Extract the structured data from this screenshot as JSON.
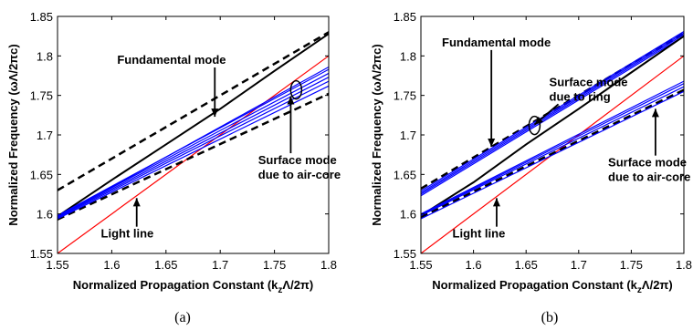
{
  "chart_data": [
    {
      "type": "line",
      "caption": "(a)",
      "xlabel": "Normalized Propagation Constant (k",
      "xlabel_sub": "z",
      "xlabel_tail": "Λ/2π)",
      "ylabel": "Normalized Frequency (ωΛ/2πc)",
      "xlim": [
        1.55,
        1.8
      ],
      "ylim": [
        1.55,
        1.85
      ],
      "xticks": [
        "1.55",
        "1.6",
        "1.65",
        "1.7",
        "1.75",
        "1.8"
      ],
      "yticks": [
        "1.55",
        "1.6",
        "1.65",
        "1.7",
        "1.75",
        "1.8",
        "1.85"
      ],
      "series": [
        {
          "style": "solid",
          "color": "#ff0000",
          "x": [
            1.55,
            1.8
          ],
          "y": [
            1.55,
            1.8
          ]
        },
        {
          "style": "dashed",
          "color": "#000000",
          "x": [
            1.55,
            1.8
          ],
          "y": [
            1.63,
            1.83
          ]
        },
        {
          "style": "solid",
          "color": "#000000",
          "x": [
            1.55,
            1.6,
            1.65,
            1.7,
            1.75,
            1.8
          ],
          "y": [
            1.597,
            1.643,
            1.688,
            1.733,
            1.781,
            1.828
          ]
        },
        {
          "style": "dashed",
          "color": "#000000",
          "x": [
            1.55,
            1.8
          ],
          "y": [
            1.593,
            1.752
          ]
        },
        {
          "style": "solid",
          "color": "#0000ff",
          "x": [
            1.55,
            1.8
          ],
          "y": [
            1.594,
            1.762
          ]
        },
        {
          "style": "solid",
          "color": "#0000ff",
          "x": [
            1.55,
            1.8
          ],
          "y": [
            1.595,
            1.768
          ]
        },
        {
          "style": "solid",
          "color": "#0000ff",
          "x": [
            1.55,
            1.8
          ],
          "y": [
            1.596,
            1.773
          ]
        },
        {
          "style": "solid",
          "color": "#0000ff",
          "x": [
            1.55,
            1.8
          ],
          "y": [
            1.597,
            1.778
          ]
        },
        {
          "style": "solid",
          "color": "#0000ff",
          "x": [
            1.55,
            1.8
          ],
          "y": [
            1.598,
            1.783
          ]
        },
        {
          "style": "solid",
          "color": "#0000ff",
          "x": [
            1.55,
            1.8
          ],
          "y": [
            1.596,
            1.786
          ]
        }
      ],
      "annotations": [
        {
          "lines": [
            "Fundamental mode"
          ],
          "x": 1.605,
          "y": 1.79,
          "arrow_to": [
            1.695,
            1.723
          ]
        },
        {
          "lines": [
            "Surface mode",
            "due to air-core"
          ],
          "x": 1.735,
          "y": 1.663,
          "arrow_to": [
            1.765,
            1.749
          ]
        },
        {
          "lines": [
            "Light line"
          ],
          "x": 1.59,
          "y": 1.57,
          "arrow_to": [
            1.623,
            1.62
          ]
        }
      ],
      "ellipse": {
        "x": 1.77,
        "y": 1.757
      }
    },
    {
      "type": "line",
      "caption": "(b)",
      "xlabel": "Normalized Propagation Constant (k",
      "xlabel_sub": "z",
      "xlabel_tail": "Λ/2π)",
      "ylabel": "Normalized Frequency (ωΛ/2πc)",
      "xlim": [
        1.55,
        1.8
      ],
      "ylim": [
        1.55,
        1.85
      ],
      "xticks": [
        "1.55",
        "1.6",
        "1.65",
        "1.7",
        "1.75",
        "1.8"
      ],
      "yticks": [
        "1.55",
        "1.6",
        "1.65",
        "1.7",
        "1.75",
        "1.8",
        "1.85"
      ],
      "series": [
        {
          "style": "solid",
          "color": "#ff0000",
          "x": [
            1.55,
            1.8
          ],
          "y": [
            1.55,
            1.8
          ]
        },
        {
          "style": "dashed",
          "color": "#000000",
          "x": [
            1.55,
            1.8
          ],
          "y": [
            1.632,
            1.829
          ]
        },
        {
          "style": "solid",
          "color": "#0000ff",
          "x": [
            1.55,
            1.8
          ],
          "y": [
            1.625,
            1.827
          ]
        },
        {
          "style": "solid",
          "color": "#0000ff",
          "x": [
            1.55,
            1.8
          ],
          "y": [
            1.627,
            1.829
          ]
        },
        {
          "style": "solid",
          "color": "#0000ff",
          "x": [
            1.55,
            1.8
          ],
          "y": [
            1.629,
            1.831
          ]
        },
        {
          "style": "solid",
          "color": "#0000ff",
          "x": [
            1.55,
            1.8
          ],
          "y": [
            1.623,
            1.825
          ]
        },
        {
          "style": "solid",
          "color": "#000000",
          "x": [
            1.55,
            1.6,
            1.65,
            1.7,
            1.75,
            1.8
          ],
          "y": [
            1.598,
            1.64,
            1.688,
            1.733,
            1.779,
            1.825
          ]
        },
        {
          "style": "dashed",
          "color": "#000000",
          "x": [
            1.55,
            1.8
          ],
          "y": [
            1.596,
            1.757
          ]
        },
        {
          "style": "solid",
          "color": "#0000ff",
          "x": [
            1.55,
            1.8
          ],
          "y": [
            1.598,
            1.761
          ]
        },
        {
          "style": "solid",
          "color": "#0000ff",
          "x": [
            1.55,
            1.8
          ],
          "y": [
            1.599,
            1.765
          ]
        },
        {
          "style": "solid",
          "color": "#0000ff",
          "x": [
            1.55,
            1.8
          ],
          "y": [
            1.6,
            1.768
          ]
        },
        {
          "style": "solid",
          "color": "#0000ff",
          "x": [
            1.55,
            1.8
          ],
          "y": [
            1.594,
            1.755
          ]
        }
      ],
      "annotations": [
        {
          "lines": [
            "Fundamental mode"
          ],
          "x": 1.57,
          "y": 1.812,
          "arrow_to": [
            1.617,
            1.685
          ]
        },
        {
          "lines": [
            "Surface mode",
            "due to ring"
          ],
          "x": 1.672,
          "y": 1.762,
          "arrow_to": [
            1.658,
            1.713
          ]
        },
        {
          "lines": [
            "Surface mode",
            "due to air-core"
          ],
          "x": 1.728,
          "y": 1.66,
          "arrow_to": [
            1.773,
            1.733
          ]
        },
        {
          "lines": [
            "Light line"
          ],
          "x": 1.58,
          "y": 1.57,
          "arrow_to": [
            1.622,
            1.62
          ]
        }
      ],
      "ellipse": {
        "x": 1.658,
        "y": 1.712
      }
    }
  ]
}
